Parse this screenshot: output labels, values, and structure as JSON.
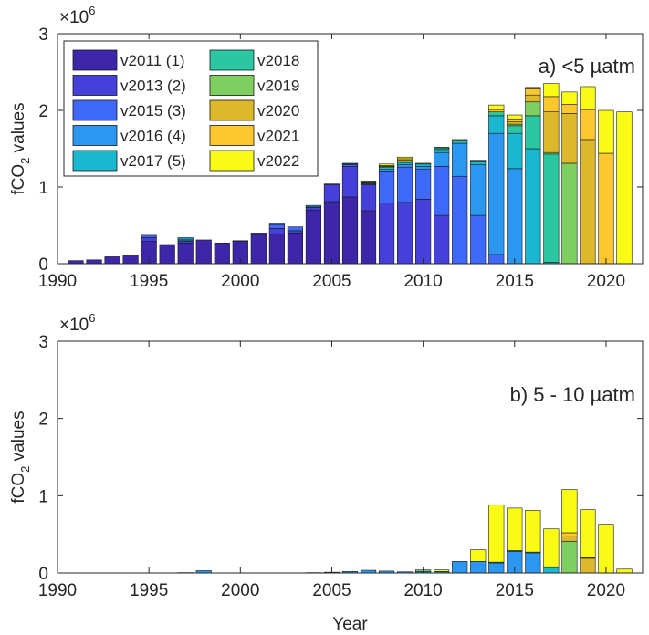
{
  "figure": {
    "xlabel": "Year",
    "ylabel_main": "fCO",
    "ylabel_sub": "2",
    "ylabel_tail": " values",
    "exponent_base": "×10",
    "exponent_power": "6"
  },
  "series_colors": [
    "#3e26a8",
    "#4540d9",
    "#3f69f8",
    "#2c97f0",
    "#1ab7d0",
    "#2bc7a0",
    "#7fcf60",
    "#dcb82a",
    "#fdc82d",
    "#f9fb15"
  ],
  "chart_data": [
    {
      "type": "bar",
      "stacked": true,
      "title": "a) <5 µatm",
      "xlabel": "",
      "ylabel": "fCO2 values",
      "scale_note": "×10^6",
      "xlim": [
        1990,
        2022
      ],
      "ylim": [
        0,
        3
      ],
      "xticks": [
        1990,
        1995,
        2000,
        2005,
        2010,
        2015,
        2020
      ],
      "yticks": [
        0,
        1,
        2,
        3
      ],
      "legend": {
        "placement": "top-left",
        "entries": [
          "v2011 (1)",
          "v2013 (2)",
          "v2015 (3)",
          "v2016 (4)",
          "v2017 (5)",
          "v2018",
          "v2019",
          "v2020",
          "v2021",
          "v2022"
        ]
      },
      "bars": [
        {
          "year": 1991,
          "segments": [
            0.04,
            0,
            0,
            0,
            0,
            0,
            0,
            0,
            0,
            0
          ]
        },
        {
          "year": 1992,
          "segments": [
            0.05,
            0,
            0,
            0,
            0,
            0,
            0,
            0,
            0,
            0
          ]
        },
        {
          "year": 1993,
          "segments": [
            0.09,
            0,
            0,
            0,
            0,
            0,
            0,
            0,
            0,
            0
          ]
        },
        {
          "year": 1994,
          "segments": [
            0.11,
            0,
            0,
            0,
            0,
            0,
            0,
            0,
            0,
            0
          ]
        },
        {
          "year": 1995,
          "segments": [
            0.29,
            0.05,
            0.03,
            0,
            0,
            0,
            0,
            0,
            0,
            0
          ]
        },
        {
          "year": 1996,
          "segments": [
            0.25,
            0,
            0,
            0,
            0,
            0,
            0,
            0,
            0,
            0
          ]
        },
        {
          "year": 1997,
          "segments": [
            0.27,
            0.02,
            0.01,
            0.02,
            0.02,
            0,
            0,
            0,
            0,
            0
          ]
        },
        {
          "year": 1998,
          "segments": [
            0.31,
            0,
            0,
            0,
            0,
            0,
            0,
            0,
            0,
            0
          ]
        },
        {
          "year": 1999,
          "segments": [
            0.27,
            0,
            0,
            0,
            0,
            0,
            0,
            0,
            0,
            0
          ]
        },
        {
          "year": 2000,
          "segments": [
            0.29,
            0.01,
            0,
            0,
            0,
            0,
            0,
            0,
            0,
            0
          ]
        },
        {
          "year": 2001,
          "segments": [
            0.38,
            0.02,
            0,
            0,
            0,
            0,
            0,
            0,
            0,
            0
          ]
        },
        {
          "year": 2002,
          "segments": [
            0.39,
            0.07,
            0.05,
            0.02,
            0,
            0,
            0,
            0,
            0,
            0
          ]
        },
        {
          "year": 2003,
          "segments": [
            0.4,
            0.03,
            0.05,
            0,
            0,
            0,
            0,
            0,
            0,
            0
          ]
        },
        {
          "year": 2004,
          "segments": [
            0.7,
            0.03,
            0.01,
            0.02,
            0,
            0,
            0,
            0,
            0,
            0
          ]
        },
        {
          "year": 2005,
          "segments": [
            0.81,
            0.22,
            0.01,
            0,
            0,
            0,
            0,
            0,
            0,
            0
          ]
        },
        {
          "year": 2006,
          "segments": [
            0.87,
            0.4,
            0.02,
            0.01,
            0.01,
            0,
            0,
            0,
            0,
            0
          ]
        },
        {
          "year": 2007,
          "segments": [
            0.69,
            0.34,
            0.01,
            0,
            0.01,
            0,
            0,
            0.01,
            0.01,
            0.01
          ]
        },
        {
          "year": 2008,
          "segments": [
            0,
            0.79,
            0.42,
            0.02,
            0.03,
            0,
            0,
            0.01,
            0.01,
            0.02
          ]
        },
        {
          "year": 2009,
          "segments": [
            0,
            0.8,
            0.46,
            0.03,
            0.03,
            0,
            0,
            0.03,
            0.02,
            0.02
          ]
        },
        {
          "year": 2010,
          "segments": [
            0,
            0.84,
            0.39,
            0.04,
            0.03,
            0,
            0.01,
            0,
            0,
            0
          ]
        },
        {
          "year": 2011,
          "segments": [
            0,
            0.63,
            0.64,
            0.18,
            0.04,
            0.02,
            0.01,
            0,
            0,
            0
          ]
        },
        {
          "year": 2012,
          "segments": [
            0,
            0,
            1.14,
            0.43,
            0.04,
            0,
            0,
            0,
            0,
            0.01
          ]
        },
        {
          "year": 2013,
          "segments": [
            0,
            0,
            0.63,
            0.66,
            0.04,
            0,
            0,
            0,
            0,
            0.02
          ]
        },
        {
          "year": 2014,
          "segments": [
            0,
            0,
            0.12,
            1.58,
            0.23,
            0.05,
            0,
            0,
            0.03,
            0.06
          ]
        },
        {
          "year": 2015,
          "segments": [
            0,
            0,
            0,
            1.24,
            0.46,
            0.1,
            0.02,
            0.03,
            0.04,
            0.05
          ]
        },
        {
          "year": 2016,
          "segments": [
            0,
            0,
            0,
            0,
            1.5,
            0.43,
            0.18,
            0.09,
            0.08,
            0.02
          ]
        },
        {
          "year": 2017,
          "segments": [
            0,
            0,
            0,
            0,
            0.02,
            1.41,
            0.02,
            0.53,
            0.2,
            0.17
          ]
        },
        {
          "year": 2018,
          "segments": [
            0,
            0,
            0,
            0,
            0,
            0,
            1.31,
            0.65,
            0.12,
            0.16
          ]
        },
        {
          "year": 2019,
          "segments": [
            0,
            0,
            0,
            0,
            0,
            0,
            0,
            1.62,
            0.39,
            0.3
          ]
        },
        {
          "year": 2020,
          "segments": [
            0,
            0,
            0,
            0,
            0,
            0,
            0,
            0,
            1.44,
            0.56
          ]
        },
        {
          "year": 2021,
          "segments": [
            0,
            0,
            0,
            0,
            0,
            0,
            0,
            0,
            0,
            1.98
          ]
        }
      ]
    },
    {
      "type": "bar",
      "stacked": true,
      "title": "b) 5 - 10 µatm",
      "xlabel": "Year",
      "ylabel": "fCO2 values",
      "scale_note": "×10^6",
      "xlim": [
        1990,
        2022
      ],
      "ylim": [
        0,
        3
      ],
      "xticks": [
        1990,
        1995,
        2000,
        2005,
        2010,
        2015,
        2020
      ],
      "yticks": [
        0,
        1,
        2,
        3
      ],
      "bars": [
        {
          "year": 1997,
          "segments": [
            0,
            0,
            0,
            0.005,
            0,
            0,
            0,
            0,
            0,
            0
          ]
        },
        {
          "year": 1998,
          "segments": [
            0,
            0,
            0,
            0.03,
            0,
            0,
            0,
            0,
            0,
            0
          ]
        },
        {
          "year": 2004,
          "segments": [
            0,
            0,
            0,
            0.005,
            0,
            0,
            0,
            0,
            0,
            0
          ]
        },
        {
          "year": 2005,
          "segments": [
            0,
            0,
            0,
            0.01,
            0,
            0,
            0,
            0,
            0,
            0
          ]
        },
        {
          "year": 2006,
          "segments": [
            0,
            0,
            0,
            0.02,
            0,
            0,
            0,
            0,
            0,
            0
          ]
        },
        {
          "year": 2007,
          "segments": [
            0,
            0,
            0,
            0.035,
            0,
            0,
            0,
            0,
            0,
            0
          ]
        },
        {
          "year": 2008,
          "segments": [
            0,
            0,
            0,
            0.025,
            0,
            0,
            0,
            0,
            0,
            0
          ]
        },
        {
          "year": 2009,
          "segments": [
            0,
            0,
            0,
            0.015,
            0,
            0,
            0,
            0,
            0,
            0
          ]
        },
        {
          "year": 2010,
          "segments": [
            0,
            0,
            0,
            0.02,
            0,
            0,
            0.02,
            0,
            0,
            0
          ]
        },
        {
          "year": 2011,
          "segments": [
            0,
            0,
            0,
            0.02,
            0,
            0,
            0,
            0,
            0,
            0.02
          ]
        },
        {
          "year": 2012,
          "segments": [
            0,
            0,
            0,
            0.15,
            0,
            0,
            0,
            0,
            0,
            0
          ]
        },
        {
          "year": 2013,
          "segments": [
            0,
            0,
            0,
            0.15,
            0,
            0,
            0,
            0,
            0,
            0.15
          ]
        },
        {
          "year": 2014,
          "segments": [
            0,
            0,
            0,
            0.13,
            0.01,
            0,
            0,
            0,
            0,
            0.74
          ]
        },
        {
          "year": 2015,
          "segments": [
            0,
            0,
            0,
            0.28,
            0.01,
            0,
            0,
            0,
            0,
            0.55
          ]
        },
        {
          "year": 2016,
          "segments": [
            0,
            0,
            0,
            0.26,
            0.01,
            0,
            0,
            0,
            0,
            0.54
          ]
        },
        {
          "year": 2017,
          "segments": [
            0,
            0,
            0,
            0,
            0.07,
            0.01,
            0,
            0,
            0,
            0.49
          ]
        },
        {
          "year": 2018,
          "segments": [
            0,
            0,
            0,
            0,
            0,
            0,
            0.41,
            0.07,
            0.04,
            0.56
          ]
        },
        {
          "year": 2019,
          "segments": [
            0,
            0,
            0,
            0,
            0,
            0,
            0,
            0.19,
            0.01,
            0.62
          ]
        },
        {
          "year": 2020,
          "segments": [
            0,
            0,
            0,
            0,
            0,
            0,
            0,
            0,
            0,
            0.63
          ]
        },
        {
          "year": 2021,
          "segments": [
            0,
            0,
            0,
            0,
            0,
            0,
            0,
            0,
            0,
            0.05
          ]
        }
      ]
    }
  ]
}
